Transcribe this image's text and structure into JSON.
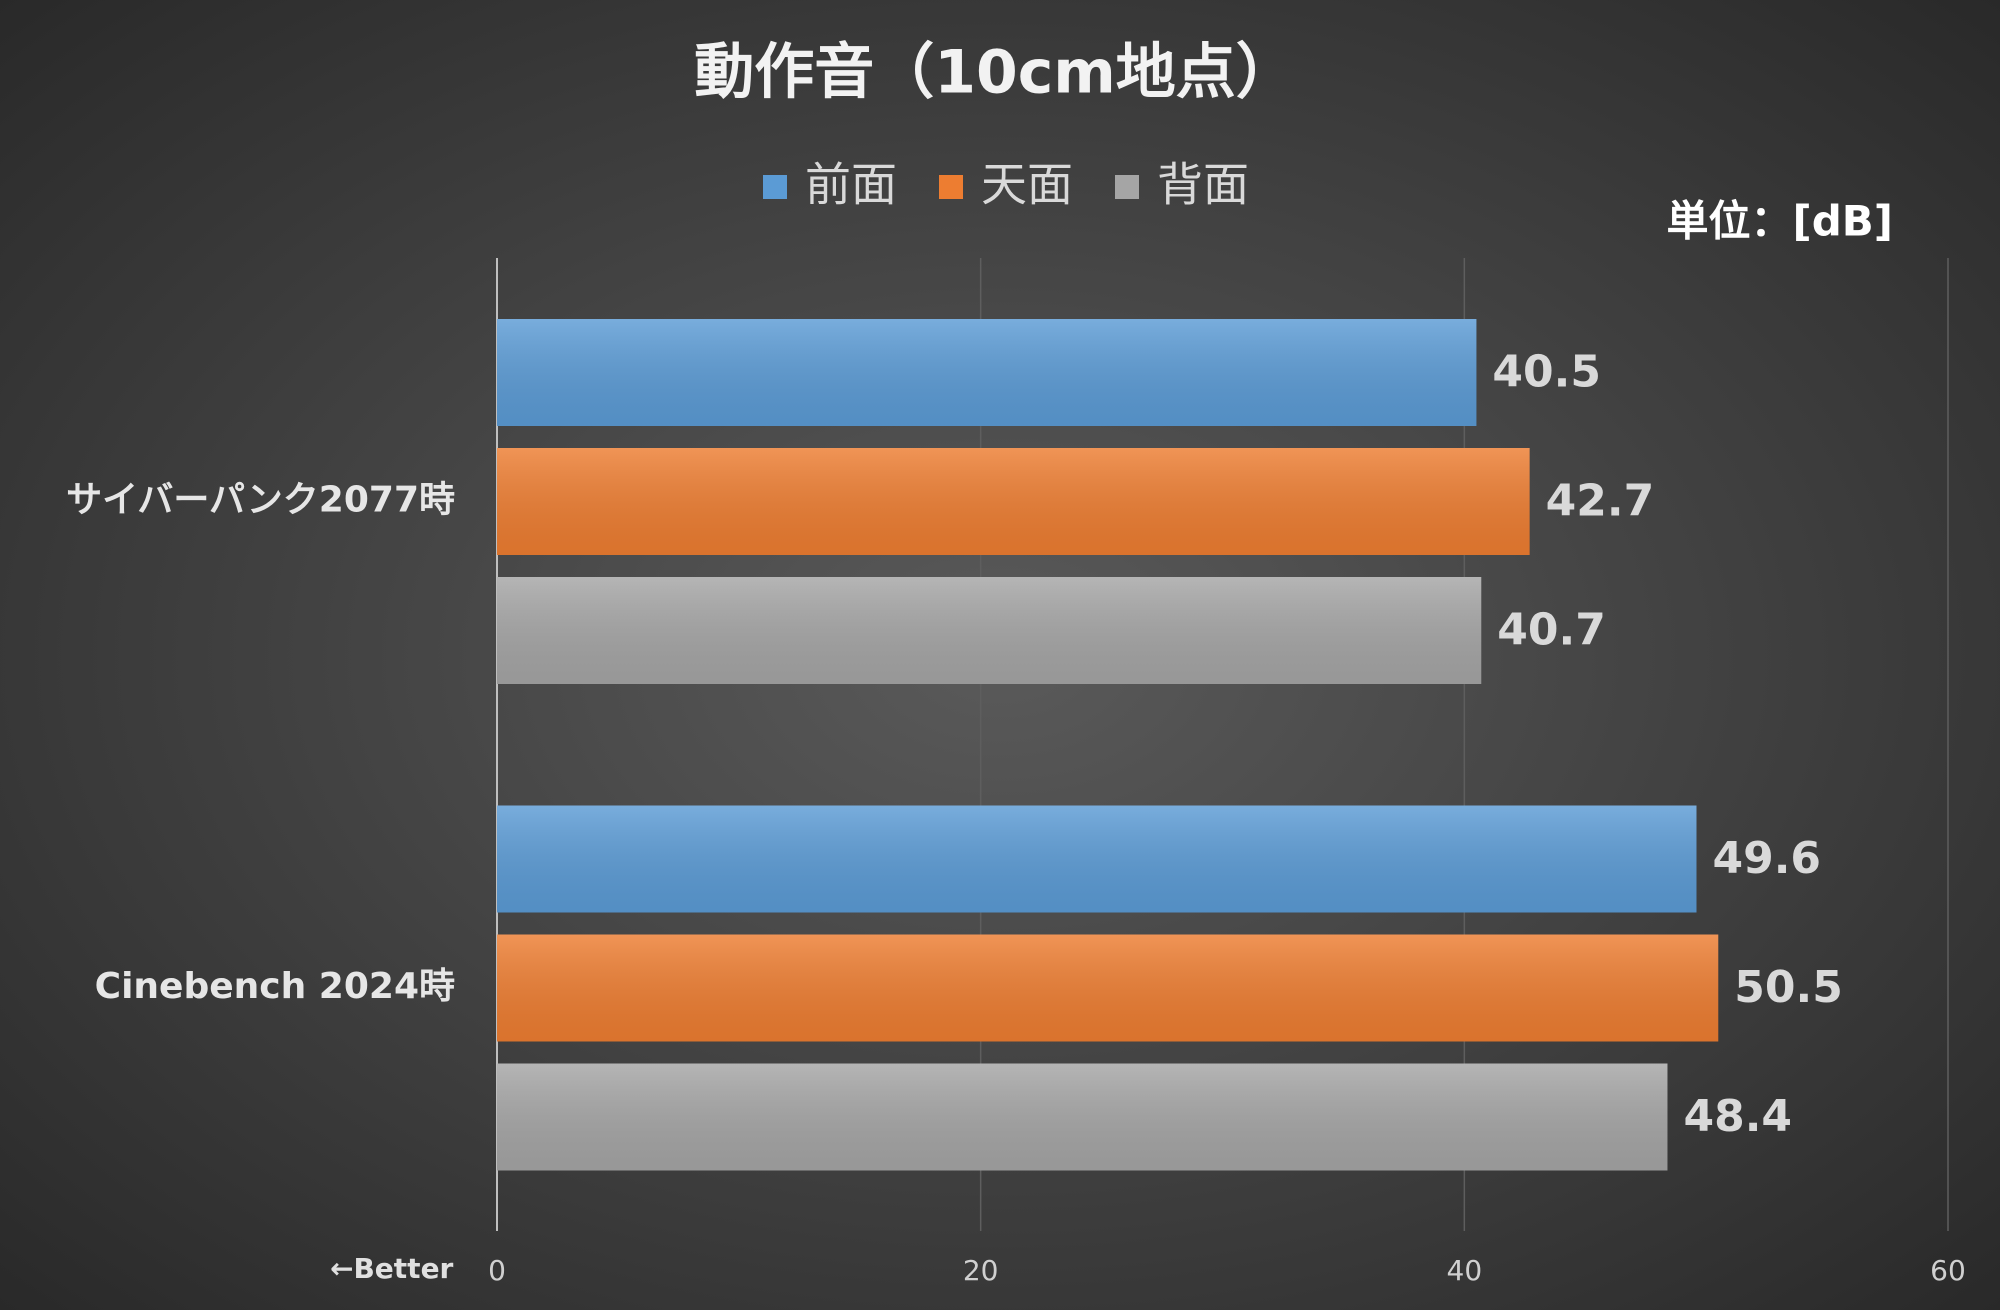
{
  "chart_data": {
    "type": "hbar",
    "title": "動作音（10cm地点）",
    "unit_label": "単位：[dB]",
    "annotation": "←Better",
    "categories": [
      "サイバーパンク2077時",
      "Cinebench 2024時"
    ],
    "series": [
      {
        "name": "前面",
        "color": "#5b9bd5",
        "values": [
          40.5,
          49.6
        ]
      },
      {
        "name": "天面",
        "color": "#ed7d31",
        "values": [
          42.7,
          50.5
        ]
      },
      {
        "name": "背面",
        "color": "#a5a5a5",
        "values": [
          40.7,
          48.4
        ]
      }
    ],
    "xlim": [
      0,
      60
    ],
    "xticks": [
      0,
      20,
      40,
      60
    ],
    "grid": true
  }
}
